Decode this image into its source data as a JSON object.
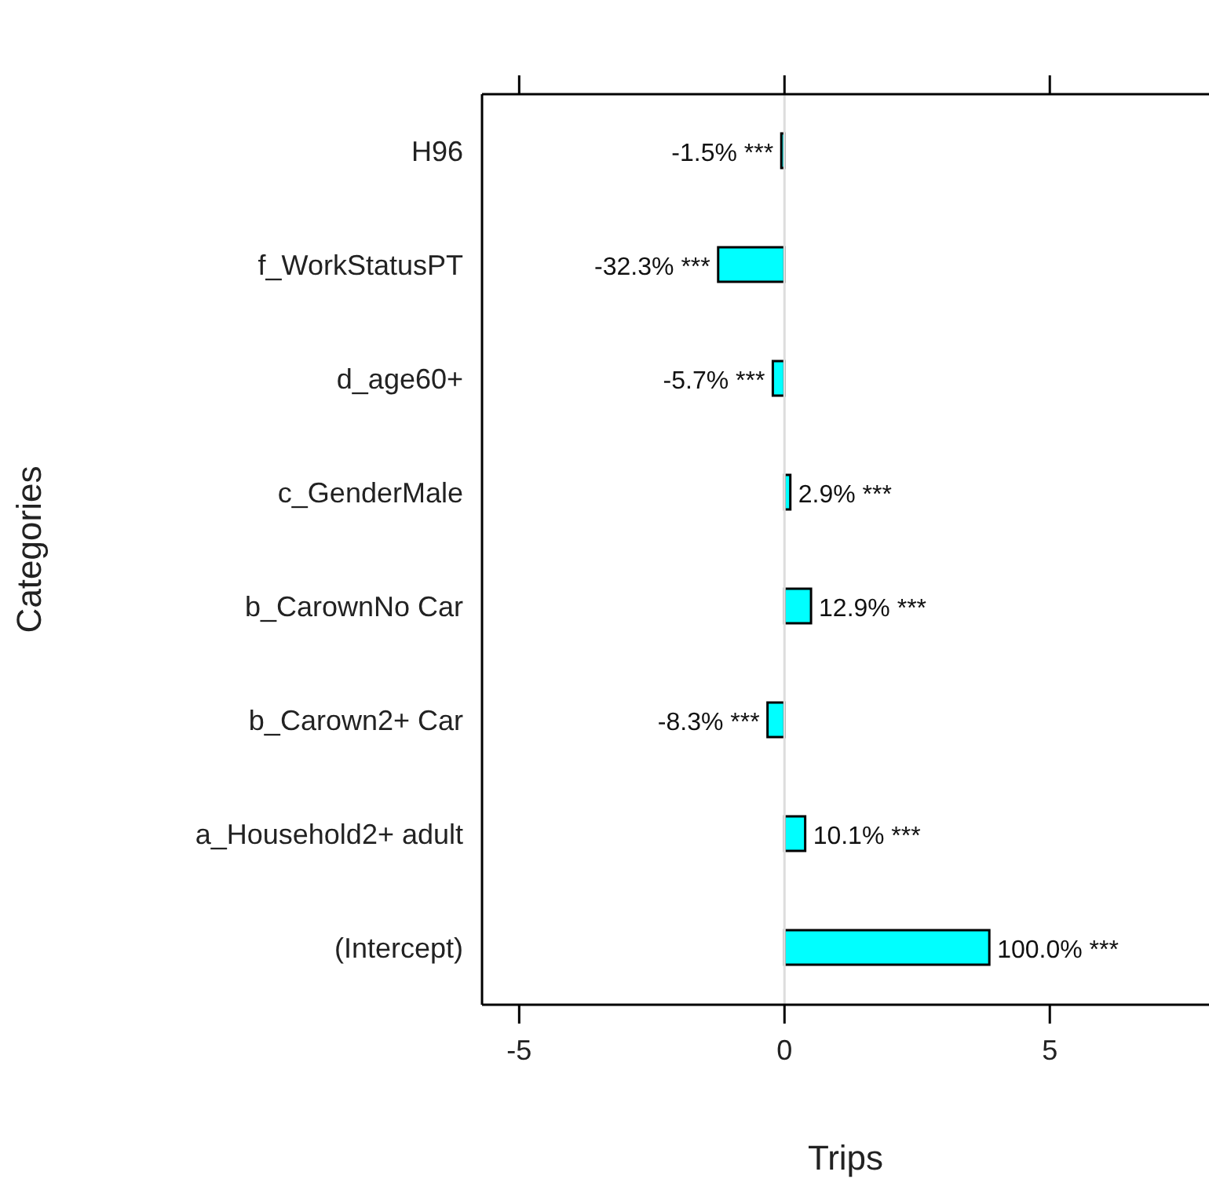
{
  "chart_data": {
    "type": "bar",
    "orientation": "horizontal",
    "xlabel": "Trips",
    "ylabel": "Categories",
    "categories": [
      "H96",
      "f_WorkStatusPT",
      "d_age60+",
      "c_GenderMale",
      "b_CarownNo Car",
      "b_Carown2+ Car",
      "a_Household2+ adult",
      "(Intercept)"
    ],
    "values": [
      -0.06,
      -1.25,
      -0.22,
      0.11,
      0.5,
      -0.32,
      0.39,
      3.86
    ],
    "color": "#00ffff",
    "xlim": [
      -5.7,
      8
    ],
    "xticks": [
      -5,
      0,
      5
    ],
    "annotations": [
      {
        "text": "-1.5% ***",
        "x": -0.06,
        "y": "H96"
      },
      {
        "text": "-32.3% ***",
        "x": -1.25,
        "y": "f_WorkStatusPT"
      },
      {
        "text": "-5.7% ***",
        "x": -0.22,
        "y": "d_age60+"
      },
      {
        "text": "2.9% ***",
        "x": 0.11,
        "y": "c_GenderMale"
      },
      {
        "text": "12.9% ***",
        "x": 0.5,
        "y": "b_CarownNo Car"
      },
      {
        "text": "-8.3% ***",
        "x": -0.32,
        "y": "b_Carown2+ Car"
      },
      {
        "text": "10.1% ***",
        "x": 0.39,
        "y": "a_Household2+ adult"
      },
      {
        "text": "100.0% ***",
        "x": 3.86,
        "y": "(Intercept)"
      }
    ],
    "ref_lines": [
      {
        "axis": "x",
        "value": 0,
        "color": "#dddddd"
      }
    ]
  }
}
